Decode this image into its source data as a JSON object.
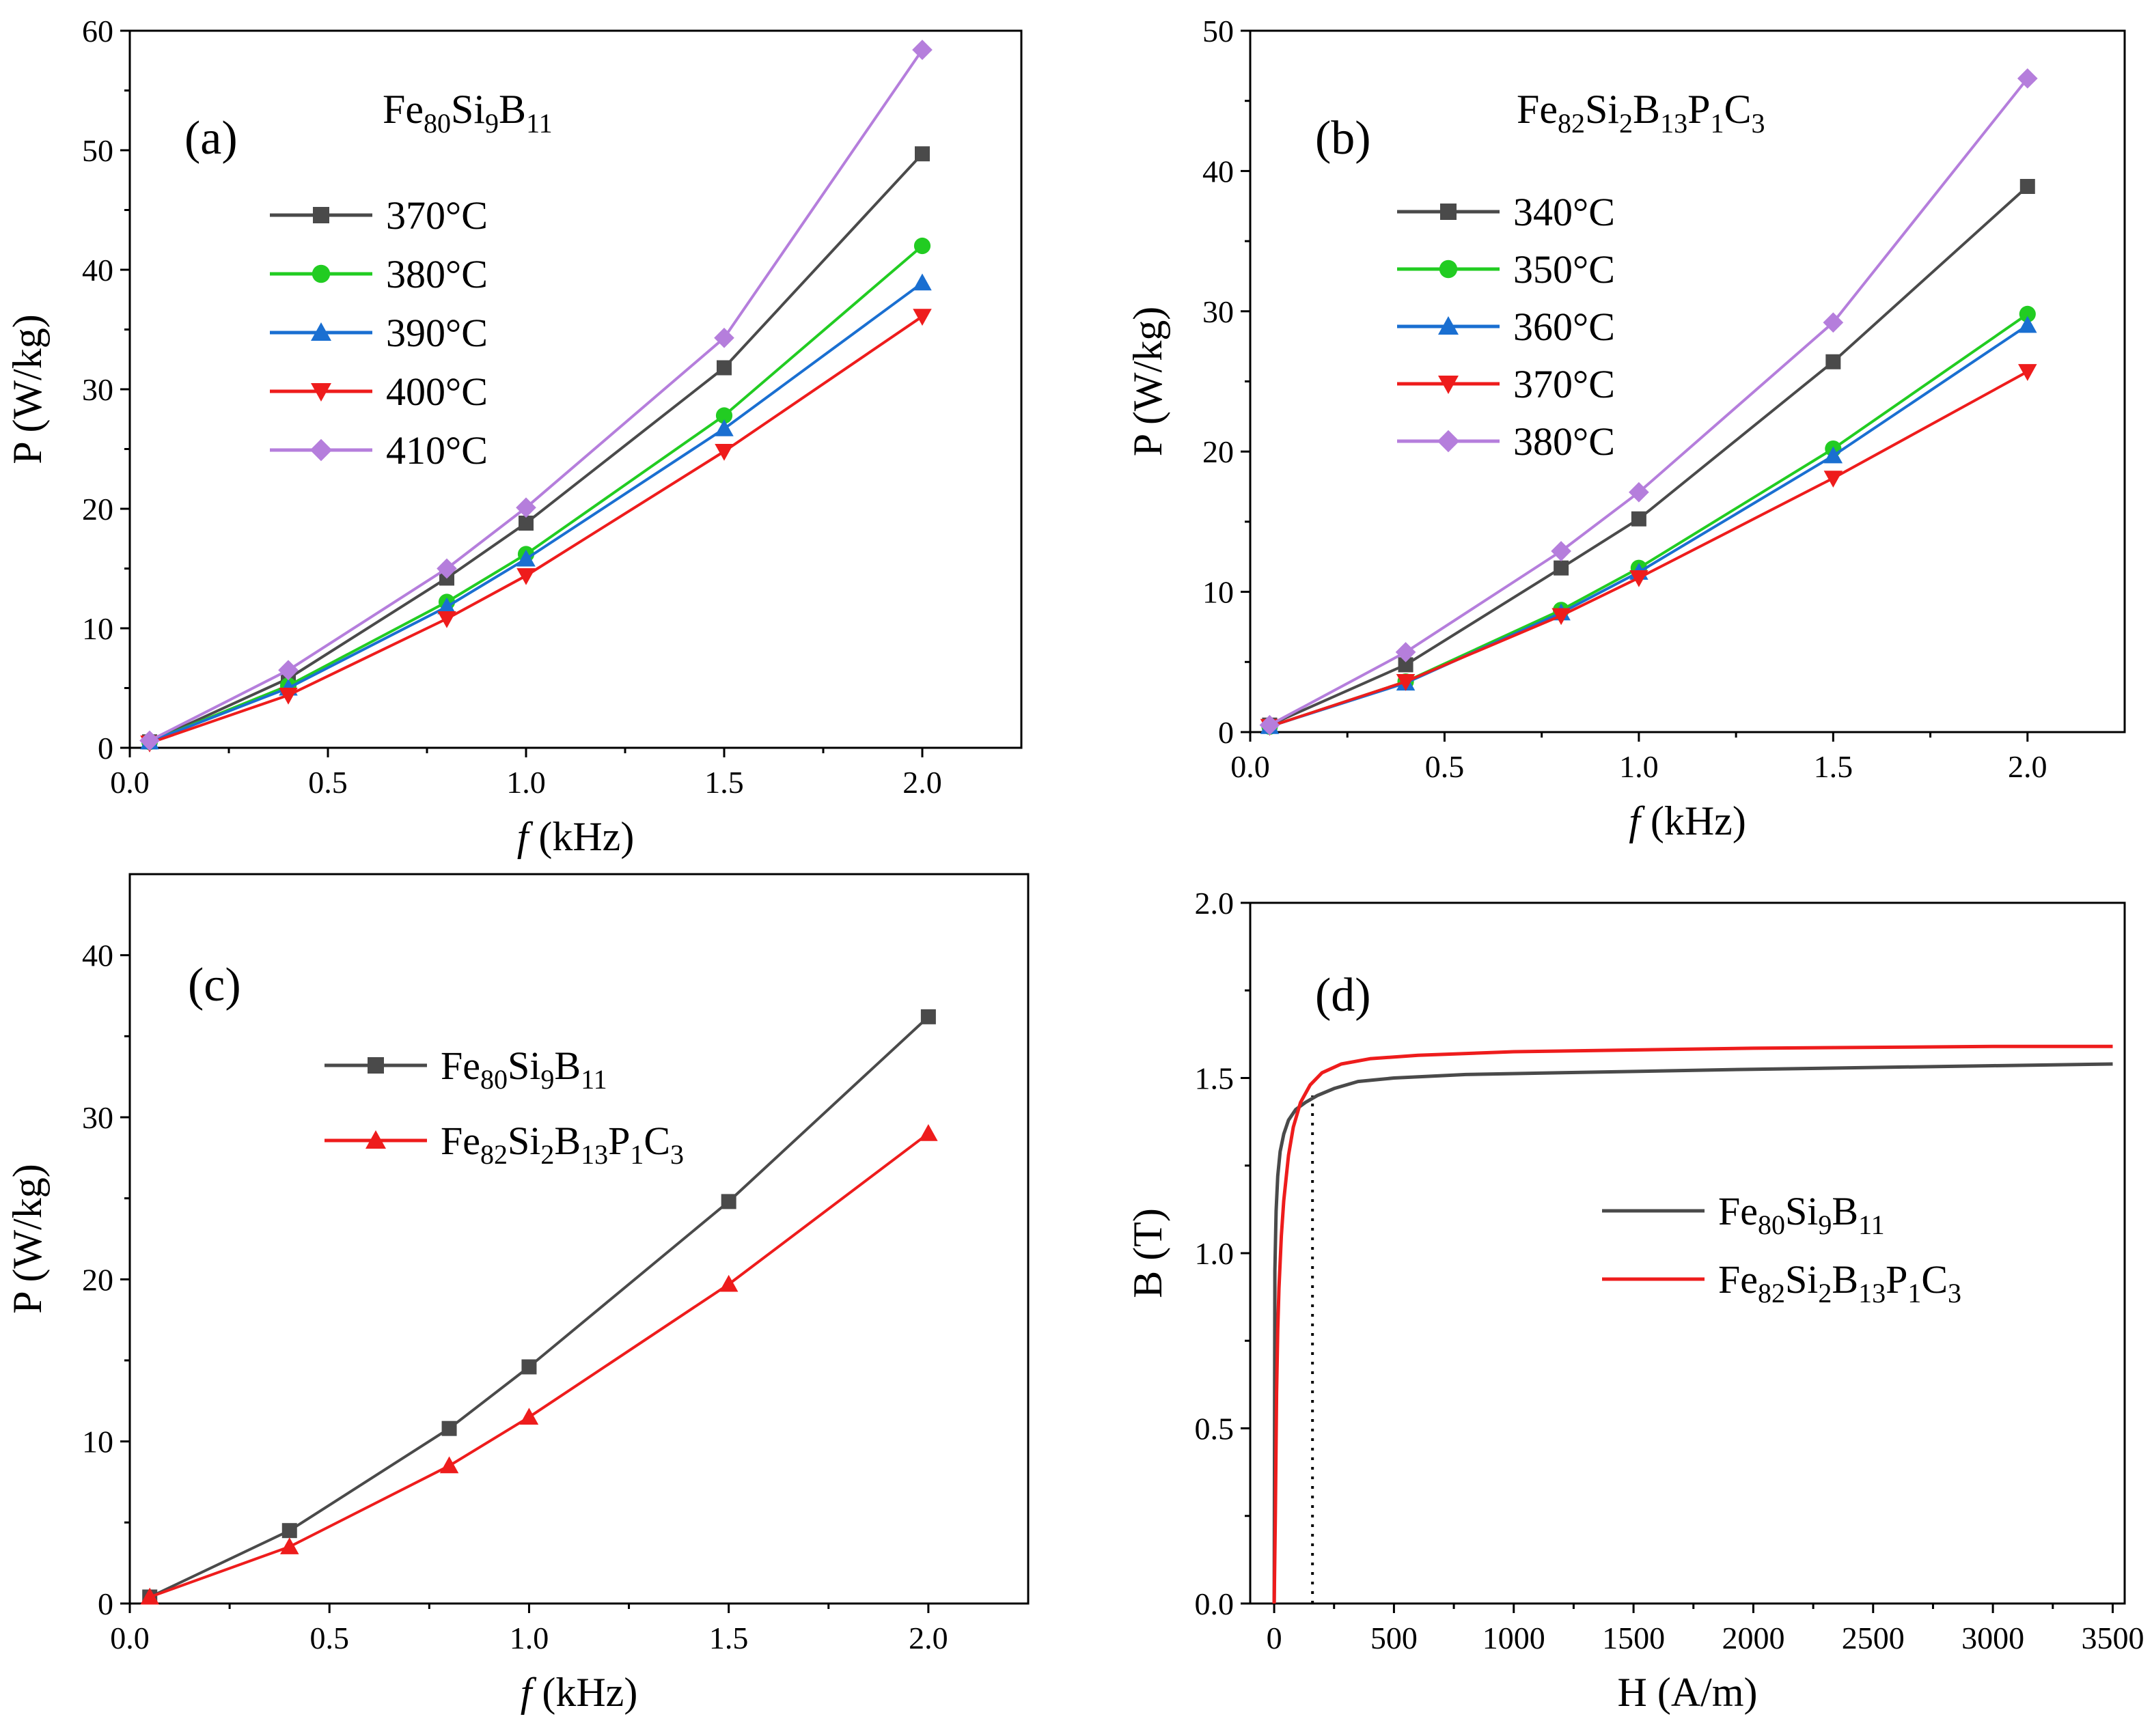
{
  "chart_data": [
    {
      "id": "a",
      "type": "line",
      "panel_label": "(a)",
      "title": {
        "base": [
          "Fe",
          "Si",
          "B"
        ],
        "subs": [
          "80",
          "9",
          "11"
        ]
      },
      "xlabel": {
        "italic": "f",
        "rest": " (kHz)"
      },
      "ylabel": "P (W/kg)",
      "xlim": [
        0,
        2.25
      ],
      "ylim": [
        0,
        60
      ],
      "xticks": [
        0.0,
        0.5,
        1.0,
        1.5,
        2.0
      ],
      "xtick_labels": [
        "0.0",
        "0.5",
        "1.0",
        "1.5",
        "2.0"
      ],
      "yticks": [
        0,
        10,
        20,
        30,
        40,
        50,
        60
      ],
      "ytick_labels": [
        "0",
        "10",
        "20",
        "30",
        "40",
        "50",
        "60"
      ],
      "x": [
        0.05,
        0.4,
        0.8,
        1.0,
        1.5,
        2.0
      ],
      "series": [
        {
          "name": "370°C",
          "color": "#4a4a4a",
          "marker": "square",
          "values": [
            0.5,
            5.8,
            14.2,
            18.8,
            31.8,
            49.7
          ]
        },
        {
          "name": "380°C",
          "color": "#22cc22",
          "marker": "circle",
          "values": [
            0.5,
            5.2,
            12.2,
            16.2,
            27.8,
            42.0
          ]
        },
        {
          "name": "390°C",
          "color": "#1a6fd1",
          "marker": "triangle-up",
          "values": [
            0.5,
            5.0,
            11.8,
            15.8,
            26.7,
            38.9
          ]
        },
        {
          "name": "400°C",
          "color": "#ee1c1c",
          "marker": "triangle-down",
          "values": [
            0.4,
            4.4,
            10.8,
            14.4,
            24.8,
            36.1
          ]
        },
        {
          "name": "410°C",
          "color": "#b57edc",
          "marker": "diamond",
          "values": [
            0.6,
            6.5,
            15.0,
            20.1,
            34.3,
            58.4
          ]
        }
      ]
    },
    {
      "id": "b",
      "type": "line",
      "panel_label": "(b)",
      "title": {
        "base": [
          "Fe",
          "Si",
          "B",
          "P",
          "C"
        ],
        "subs": [
          "82",
          "2",
          "13",
          "1",
          "3"
        ]
      },
      "xlabel": {
        "italic": "f",
        "rest": " (kHz)"
      },
      "ylabel": "P (W/kg)",
      "xlim": [
        0,
        2.25
      ],
      "ylim": [
        0,
        50
      ],
      "xticks": [
        0.0,
        0.5,
        1.0,
        1.5,
        2.0
      ],
      "xtick_labels": [
        "0.0",
        "0.5",
        "1.0",
        "1.5",
        "2.0"
      ],
      "yticks": [
        0,
        10,
        20,
        30,
        40,
        50
      ],
      "ytick_labels": [
        "0",
        "10",
        "20",
        "30",
        "40",
        "50"
      ],
      "x": [
        0.05,
        0.4,
        0.8,
        1.0,
        1.5,
        2.0
      ],
      "series": [
        {
          "name": "340°C",
          "color": "#4a4a4a",
          "marker": "square",
          "values": [
            0.5,
            4.8,
            11.7,
            15.2,
            26.4,
            38.9
          ]
        },
        {
          "name": "350°C",
          "color": "#22cc22",
          "marker": "circle",
          "values": [
            0.4,
            3.6,
            8.7,
            11.7,
            20.2,
            29.8
          ]
        },
        {
          "name": "360°C",
          "color": "#1a6fd1",
          "marker": "triangle-up",
          "values": [
            0.4,
            3.5,
            8.5,
            11.4,
            19.7,
            29.0
          ]
        },
        {
          "name": "370°C",
          "color": "#ee1c1c",
          "marker": "triangle-down",
          "values": [
            0.4,
            3.6,
            8.3,
            11.0,
            18.1,
            25.7
          ]
        },
        {
          "name": "380°C",
          "color": "#b57edc",
          "marker": "diamond",
          "values": [
            0.5,
            5.7,
            12.9,
            17.1,
            29.2,
            46.6
          ]
        }
      ]
    },
    {
      "id": "c",
      "type": "line",
      "panel_label": "(c)",
      "xlabel": {
        "italic": "f",
        "rest": " (kHz)"
      },
      "ylabel": "P (W/kg)",
      "xlim": [
        0,
        2.25
      ],
      "ylim": [
        0,
        45
      ],
      "xticks": [
        0.0,
        0.5,
        1.0,
        1.5,
        2.0
      ],
      "xtick_labels": [
        "0.0",
        "0.5",
        "1.0",
        "1.5",
        "2.0"
      ],
      "yticks": [
        0,
        10,
        20,
        30,
        40
      ],
      "ytick_labels": [
        "0",
        "10",
        "20",
        "30",
        "40"
      ],
      "x": [
        0.05,
        0.4,
        0.8,
        1.0,
        1.5,
        2.0
      ],
      "series": [
        {
          "name": "Fe80Si9B11",
          "name_base": [
            "Fe",
            "Si",
            "B"
          ],
          "name_subs": [
            "80",
            "9",
            "11"
          ],
          "color": "#4a4a4a",
          "marker": "square",
          "values": [
            0.4,
            4.5,
            10.8,
            14.6,
            24.8,
            36.2
          ]
        },
        {
          "name": "Fe82Si2B13P1C3",
          "name_base": [
            "Fe",
            "Si",
            "B",
            "P",
            "C"
          ],
          "name_subs": [
            "82",
            "2",
            "13",
            "1",
            "3"
          ],
          "color": "#ee1c1c",
          "marker": "triangle-up",
          "values": [
            0.4,
            3.5,
            8.5,
            11.5,
            19.7,
            29.0
          ]
        }
      ]
    },
    {
      "id": "d",
      "type": "line",
      "panel_label": "(d)",
      "xlabel": {
        "italic": "",
        "rest": "H (A/m)"
      },
      "ylabel": "B (T)",
      "xlim": [
        -100,
        3550
      ],
      "ylim": [
        0,
        2.0
      ],
      "xticks": [
        0,
        500,
        1000,
        1500,
        2000,
        2500,
        3000,
        3500
      ],
      "xtick_labels": [
        "0",
        "500",
        "1000",
        "1500",
        "2000",
        "2500",
        "3000",
        "3500"
      ],
      "yticks": [
        0.0,
        0.5,
        1.0,
        1.5,
        2.0
      ],
      "ytick_labels": [
        "0.0",
        "0.5",
        "1.0",
        "1.5",
        "2.0"
      ],
      "reference_line_x": 160,
      "series": [
        {
          "name": "Fe80Si9B11",
          "name_base": [
            "Fe",
            "Si",
            "B"
          ],
          "name_subs": [
            "80",
            "9",
            "11"
          ],
          "color": "#4a4a4a",
          "x": [
            0,
            3,
            8,
            15,
            25,
            40,
            60,
            90,
            130,
            180,
            250,
            350,
            500,
            800,
            1200,
            2000,
            3000,
            3500
          ],
          "y": [
            0,
            0.95,
            1.12,
            1.22,
            1.29,
            1.34,
            1.38,
            1.41,
            1.43,
            1.45,
            1.47,
            1.49,
            1.5,
            1.51,
            1.515,
            1.525,
            1.535,
            1.54
          ]
        },
        {
          "name": "Fe82Si2B13P1C3",
          "name_base": [
            "Fe",
            "Si",
            "B",
            "P",
            "C"
          ],
          "name_subs": [
            "82",
            "2",
            "13",
            "1",
            "3"
          ],
          "color": "#ee1c1c",
          "x": [
            0,
            5,
            10,
            15,
            20,
            30,
            40,
            60,
            80,
            110,
            150,
            200,
            280,
            400,
            600,
            1000,
            2000,
            3000,
            3500
          ],
          "y": [
            0,
            0.25,
            0.6,
            0.78,
            0.9,
            1.05,
            1.15,
            1.28,
            1.36,
            1.43,
            1.48,
            1.515,
            1.54,
            1.555,
            1.565,
            1.575,
            1.585,
            1.59,
            1.59
          ]
        }
      ]
    }
  ]
}
